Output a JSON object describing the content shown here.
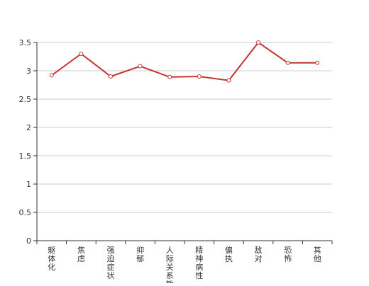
{
  "chart_data": {
    "type": "line",
    "categories": [
      "躯体化",
      "焦虑",
      "强迫症状",
      "抑郁",
      "人际关系敏感",
      "精神病性",
      "偏执",
      "敌对",
      "恐怖",
      "其他"
    ],
    "series": [
      {
        "values": [
          2.92,
          3.3,
          2.9,
          3.08,
          2.89,
          2.9,
          2.83,
          3.5,
          3.14,
          3.14
        ]
      }
    ],
    "y_ticks": [
      0,
      0.5,
      1,
      1.5,
      2,
      2.5,
      3,
      3.5
    ],
    "y_tick_labels": [
      "0",
      "0.5",
      "1",
      "1.5",
      "2",
      "2.5",
      "3",
      "3.5"
    ],
    "ylim": [
      0,
      3.5
    ],
    "grid": "horizontal",
    "line_color": "#c23531",
    "grid_color": "#cccccc",
    "axis_color": "#333333"
  }
}
